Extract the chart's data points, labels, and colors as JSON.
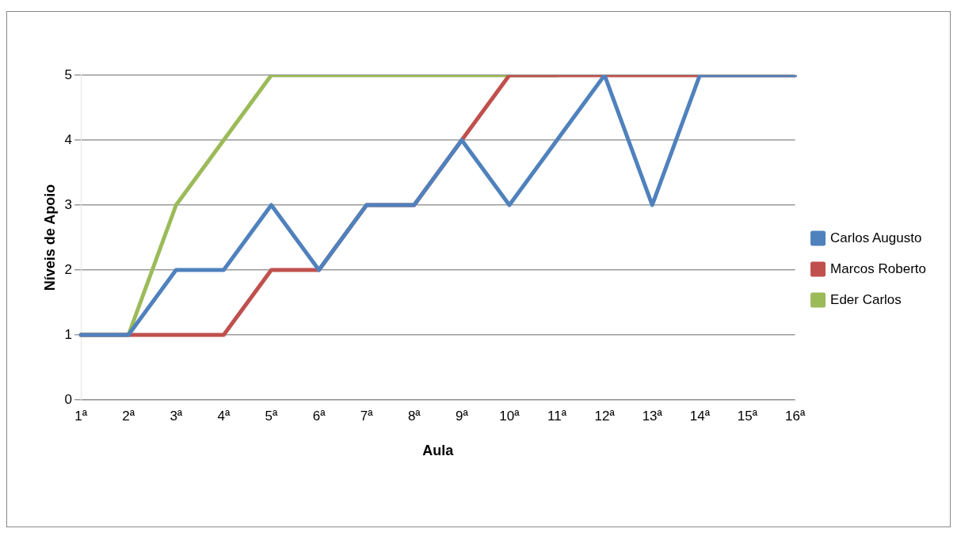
{
  "chart_data": {
    "type": "line",
    "xlabel": "Aula",
    "ylabel": "Níveis de Apoio",
    "categories": [
      "1ª",
      "2ª",
      "3ª",
      "4ª",
      "5ª",
      "6ª",
      "7ª",
      "8ª",
      "9ª",
      "10ª",
      "11ª",
      "12ª",
      "13ª",
      "14ª",
      "15ª",
      "16ª"
    ],
    "series": [
      {
        "name": "Carlos Augusto",
        "color": "#4f81bd",
        "values": [
          1,
          1,
          2,
          2,
          3,
          2,
          3,
          3,
          4,
          3,
          4,
          5,
          3,
          5,
          5,
          5
        ]
      },
      {
        "name": "Marcos Roberto",
        "color": "#c0504d",
        "values": [
          1,
          1,
          1,
          1,
          2,
          2,
          3,
          3,
          4,
          5,
          5,
          5,
          5,
          5,
          5,
          5
        ]
      },
      {
        "name": "Eder Carlos",
        "color": "#9bbb59",
        "values": [
          1,
          1,
          3,
          4,
          5,
          5,
          5,
          5,
          5,
          5,
          5,
          null,
          null,
          null,
          null,
          null
        ]
      }
    ],
    "ylim": [
      0,
      5
    ],
    "yticks": [
      0,
      1,
      2,
      3,
      4,
      5
    ],
    "grid": "y",
    "legend": "right",
    "marker": "none",
    "line_style": "solid"
  }
}
